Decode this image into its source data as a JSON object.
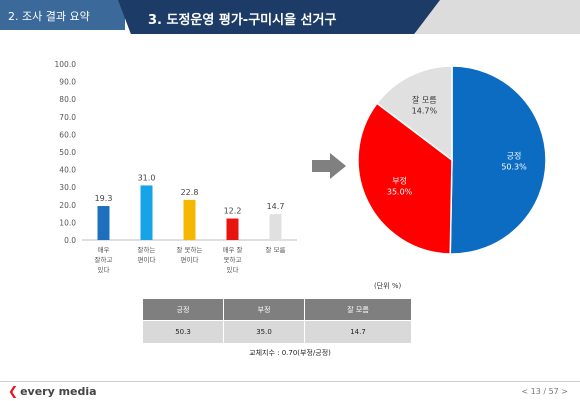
{
  "header": {
    "section": "2. 조사 결과 요약",
    "title": "3. 도정운영 평가-구미시을 선거구"
  },
  "chart_data": [
    {
      "type": "bar",
      "categories": [
        "매우 잘하고 있다",
        "잘하는 편이다",
        "잘 못하는 편이다",
        "매우 잘 못하고 있다",
        "잘 모름"
      ],
      "category_lines": [
        [
          "매우",
          "잘하고",
          "있다"
        ],
        [
          "잘하는",
          "편이다"
        ],
        [
          "잘 못하는",
          "편이다"
        ],
        [
          "매우 잘",
          "못하고",
          "있다"
        ],
        [
          "잘 모름"
        ]
      ],
      "values": [
        19.3,
        31.0,
        22.8,
        12.2,
        14.7
      ],
      "value_labels": [
        "19.3",
        "31.0",
        "22.8",
        "12.2",
        "14.7"
      ],
      "colors": [
        "#1f6fbf",
        "#17a3e8",
        "#f5b800",
        "#e8140f",
        "#e0e0e0"
      ],
      "ylim": [
        0,
        100
      ],
      "yticks": [
        "0.0",
        "10.0",
        "20.0",
        "30.0",
        "40.0",
        "50.0",
        "60.0",
        "70.0",
        "80.0",
        "90.0",
        "100.0"
      ],
      "grid": false
    },
    {
      "type": "pie",
      "labels": [
        "긍정",
        "부정",
        "잘 모름"
      ],
      "values": [
        50.3,
        35.0,
        14.7
      ],
      "value_labels": [
        "50.3%",
        "35.0%",
        "14.7%"
      ],
      "colors": [
        "#0b6cc2",
        "#ff0000",
        "#e0e0e0"
      ]
    }
  ],
  "arrow_color": "#808080",
  "summary": {
    "unit": "(단위 %)",
    "headers": [
      "긍정",
      "부정",
      "잘 모름"
    ],
    "values": [
      "50.3",
      "35.0",
      "14.7"
    ],
    "note": "교체지수 : 0.70(부정/긍정)"
  },
  "footer": {
    "logo_mark": "❮",
    "logo_text": "every media",
    "page": "< 13 / 57 >"
  }
}
